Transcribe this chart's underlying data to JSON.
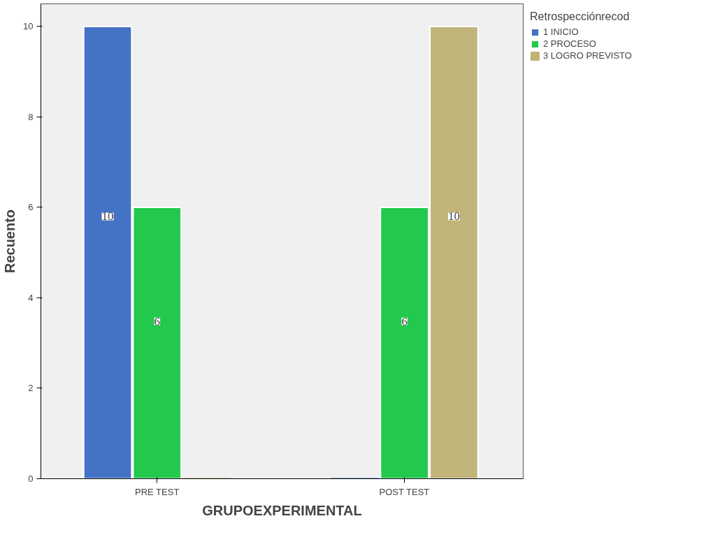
{
  "chart_data": {
    "type": "bar",
    "xlabel": "GRUPOEXPERIMENTAL",
    "ylabel": "Recuento",
    "legend_title": "Retrospecciónrecod",
    "categories": [
      "PRE TEST",
      "POST TEST"
    ],
    "series": [
      {
        "name": "1 INICIO",
        "color": "#4472c4",
        "values": [
          10,
          0
        ],
        "value_labels": [
          "10",
          null
        ]
      },
      {
        "name": "2 PROCESO",
        "color": "#22c94d",
        "values": [
          6,
          6
        ],
        "value_labels": [
          "6",
          "6"
        ]
      },
      {
        "name": "3 LOGRO PREVISTO",
        "color": "#c0b478",
        "values": [
          0,
          10
        ],
        "value_labels": [
          null,
          "10"
        ]
      }
    ],
    "ylim": [
      0,
      10.5
    ],
    "yticks": [
      0,
      2,
      4,
      6,
      8,
      10
    ],
    "grid": false,
    "legend": "top right"
  }
}
